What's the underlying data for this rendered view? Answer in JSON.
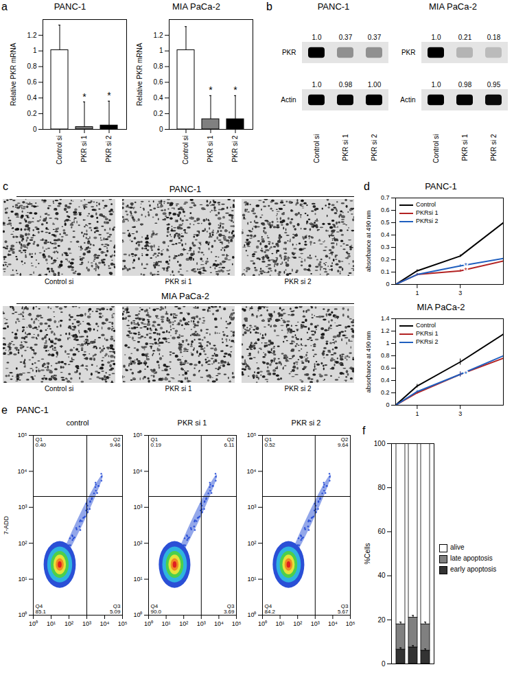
{
  "chart_data": [
    {
      "panel": "a",
      "type": "bar",
      "title": "PANC-1",
      "ylabel": "Relative PKR mRNA",
      "categories": [
        "Control si",
        "PKR si 1",
        "PKR si 2"
      ],
      "values": [
        1.01,
        0.03,
        0.05
      ],
      "errors": [
        0.32,
        0.32,
        0.31
      ],
      "colors": [
        "#ffffff",
        "#808080",
        "#000000"
      ],
      "significance": [
        null,
        "*",
        "*"
      ],
      "ylim": [
        0,
        1.4
      ],
      "yticks": [
        0,
        0.2,
        0.4,
        0.6,
        0.8,
        1,
        1.2
      ]
    },
    {
      "type": "bar",
      "title": "MIA PaCa-2",
      "ylabel": "Relative PKR mRNA",
      "categories": [
        "Control si",
        "PKR si 1",
        "PKR si 2"
      ],
      "values": [
        1.01,
        0.13,
        0.13
      ],
      "errors": [
        0.3,
        0.3,
        0.3
      ],
      "colors": [
        "#ffffff",
        "#808080",
        "#000000"
      ],
      "significance": [
        null,
        "*",
        "*"
      ],
      "ylim": [
        0,
        1.4
      ],
      "yticks": [
        0,
        0.2,
        0.4,
        0.6,
        0.8,
        1,
        1.2
      ]
    },
    {
      "panel": "b",
      "type": "blot",
      "title": "PANC-1",
      "categories": [
        "Control si",
        "PKR si 1",
        "PKR si 2"
      ],
      "series": [
        {
          "name": "PKR",
          "values": [
            1,
            0.37,
            0.37
          ],
          "value_labels": [
            "1.0",
            "0.37",
            "0.37"
          ]
        },
        {
          "name": "Actin",
          "values": [
            1,
            0.98,
            1
          ],
          "value_labels": [
            "1.0",
            "0.98",
            "1.00"
          ]
        }
      ]
    },
    {
      "type": "blot",
      "title": "MIA PaCa-2",
      "categories": [
        "Control si",
        "PKR si 1",
        "PKR si 2"
      ],
      "series": [
        {
          "name": "PKR",
          "values": [
            1,
            0.21,
            0.18
          ],
          "value_labels": [
            "1.0",
            "0.21",
            "0.18"
          ]
        },
        {
          "name": "Actin",
          "values": [
            1,
            0.98,
            0.95
          ],
          "value_labels": [
            "1.0",
            "0.98",
            "0.95"
          ]
        }
      ]
    },
    {
      "panel": "c",
      "type": "image",
      "title": "PANC-1",
      "categories": [
        "Control si",
        "PKR si 1",
        "PKR si 2"
      ]
    },
    {
      "type": "image",
      "title": "MIA PaCa-2",
      "categories": [
        "Control si",
        "PKR si 1",
        "PKR si 2"
      ]
    },
    {
      "panel": "d",
      "type": "line",
      "title": "PANC-1",
      "ylabel": "absorbance at 490 nm",
      "x": [
        0,
        1,
        3,
        5
      ],
      "xlim": [
        0,
        5
      ],
      "xticks": [
        1,
        3
      ],
      "ylim": [
        0,
        0.7
      ],
      "yticks": [
        0,
        0.1,
        0.2,
        0.3,
        0.4,
        0.5,
        0.6,
        0.7
      ],
      "legend": "top-left",
      "series": [
        {
          "name": "Control",
          "color": "#000000",
          "values": [
            0,
            0.11,
            0.23,
            0.5
          ],
          "errors": [
            null,
            0.01,
            0.01,
            0.01
          ]
        },
        {
          "name": "PKRsi 1",
          "color": "#b22222",
          "values": [
            0,
            0.08,
            0.11,
            0.19
          ],
          "errors": [
            null,
            0.01,
            0.01,
            0.01
          ],
          "significance": [
            null,
            null,
            "*",
            null
          ]
        },
        {
          "name": "PKRsi 2",
          "color": "#1f5fbf",
          "values": [
            0,
            0.08,
            0.15,
            0.21
          ],
          "errors": [
            null,
            0.01,
            0.01,
            0.01
          ],
          "significance": [
            null,
            null,
            "*",
            null
          ]
        }
      ]
    },
    {
      "type": "line",
      "title": "MIA PaCa-2",
      "ylabel": "absorbance at 490 nm",
      "x": [
        0,
        1,
        3,
        5
      ],
      "xlim": [
        0,
        5
      ],
      "xticks": [
        1,
        3
      ],
      "ylim": [
        0,
        1.4
      ],
      "yticks": [
        0,
        0.2,
        0.4,
        0.6,
        0.8,
        1,
        1.2,
        1.4
      ],
      "legend": "top-left",
      "series": [
        {
          "name": "Control",
          "color": "#000000",
          "values": [
            0,
            0.31,
            0.7,
            1.15
          ],
          "errors": [
            null,
            0.03,
            0.05,
            0.02
          ]
        },
        {
          "name": "PKRsi 1",
          "color": "#b22222",
          "values": [
            0,
            0.2,
            0.5,
            0.76
          ],
          "errors": [
            null,
            0.02,
            0.04,
            0.02
          ],
          "significance": [
            null,
            null,
            "*",
            null
          ]
        },
        {
          "name": "PKRsi 2",
          "color": "#1f5fbf",
          "values": [
            0,
            0.22,
            0.5,
            0.8
          ],
          "errors": [
            null,
            0.02,
            0.04,
            0.02
          ],
          "significance": [
            null,
            null,
            "*",
            null
          ]
        }
      ]
    },
    {
      "panel": "e",
      "type": "scatter",
      "title": "PANC-1",
      "ylabel": "7-ADD",
      "log": true,
      "xlim": [
        1,
        100000
      ],
      "ylim": [
        1,
        100000
      ],
      "xticks": [
        {
          "value": 1,
          "label": "10⁰"
        },
        {
          "value": 10,
          "label": "10¹"
        },
        {
          "value": 100,
          "label": "10²"
        },
        {
          "value": 1000,
          "label": "10³"
        },
        {
          "value": 10000,
          "label": "10⁴"
        },
        {
          "value": 100000,
          "label": "10⁵"
        }
      ],
      "yticks": [
        {
          "value": 1,
          "label": "10⁰"
        },
        {
          "value": 10,
          "label": "10¹"
        },
        {
          "value": 100,
          "label": "10²"
        },
        {
          "value": 1000,
          "label": "10³"
        },
        {
          "value": 10000,
          "label": "10⁴"
        },
        {
          "value": 100000,
          "label": "10⁵"
        }
      ],
      "gates": {
        "x": 1000,
        "y": 2000
      },
      "panels": [
        {
          "title": "control",
          "quadrants": [
            {
              "name": "Q1",
              "value": 0.4,
              "label": "0.40"
            },
            {
              "name": "Q2",
              "value": 9.46,
              "label": "9.46"
            },
            {
              "name": "Q3",
              "value": 5.09,
              "label": "5.09"
            },
            {
              "name": "Q4",
              "value": 85.1,
              "label": "85.1"
            }
          ]
        },
        {
          "title": "PKR si 1",
          "quadrants": [
            {
              "name": "Q1",
              "value": 0.19,
              "label": "0.19"
            },
            {
              "name": "Q2",
              "value": 6.11,
              "label": "6.11"
            },
            {
              "name": "Q3",
              "value": 3.69,
              "label": "3.69"
            },
            {
              "name": "Q4",
              "value": 90,
              "label": "90.0"
            }
          ]
        },
        {
          "title": "PKR si 2",
          "quadrants": [
            {
              "name": "Q1",
              "value": 0.52,
              "label": "0.52"
            },
            {
              "name": "Q2",
              "value": 9.64,
              "label": "9.64"
            },
            {
              "name": "Q3",
              "value": 5.67,
              "label": "5.67"
            },
            {
              "name": "Q4",
              "value": 84.2,
              "label": "84.2"
            }
          ]
        }
      ]
    },
    {
      "panel": "f",
      "type": "bar",
      "stacked": true,
      "ylabel": "%Cells",
      "categories": [
        null,
        null,
        null
      ],
      "tick_labels": "y",
      "ylim": [
        0,
        100
      ],
      "yticks": [
        0,
        20,
        40,
        60,
        80,
        100
      ],
      "legend": "right",
      "series": [
        {
          "name": "early apoptosis",
          "color": "#333333",
          "values": [
            6.5,
            7.5,
            6
          ],
          "errors": [
            0.8,
            0.8,
            0.8
          ]
        },
        {
          "name": "late apoptosis",
          "color": "#808080",
          "values": [
            11.5,
            13.5,
            12
          ],
          "errors": [
            1,
            1,
            1
          ]
        },
        {
          "name": "alive",
          "color": "#ffffff",
          "values": [
            82,
            79,
            82
          ],
          "errors": [
            0.4,
            0.4,
            0.4
          ]
        }
      ]
    }
  ]
}
